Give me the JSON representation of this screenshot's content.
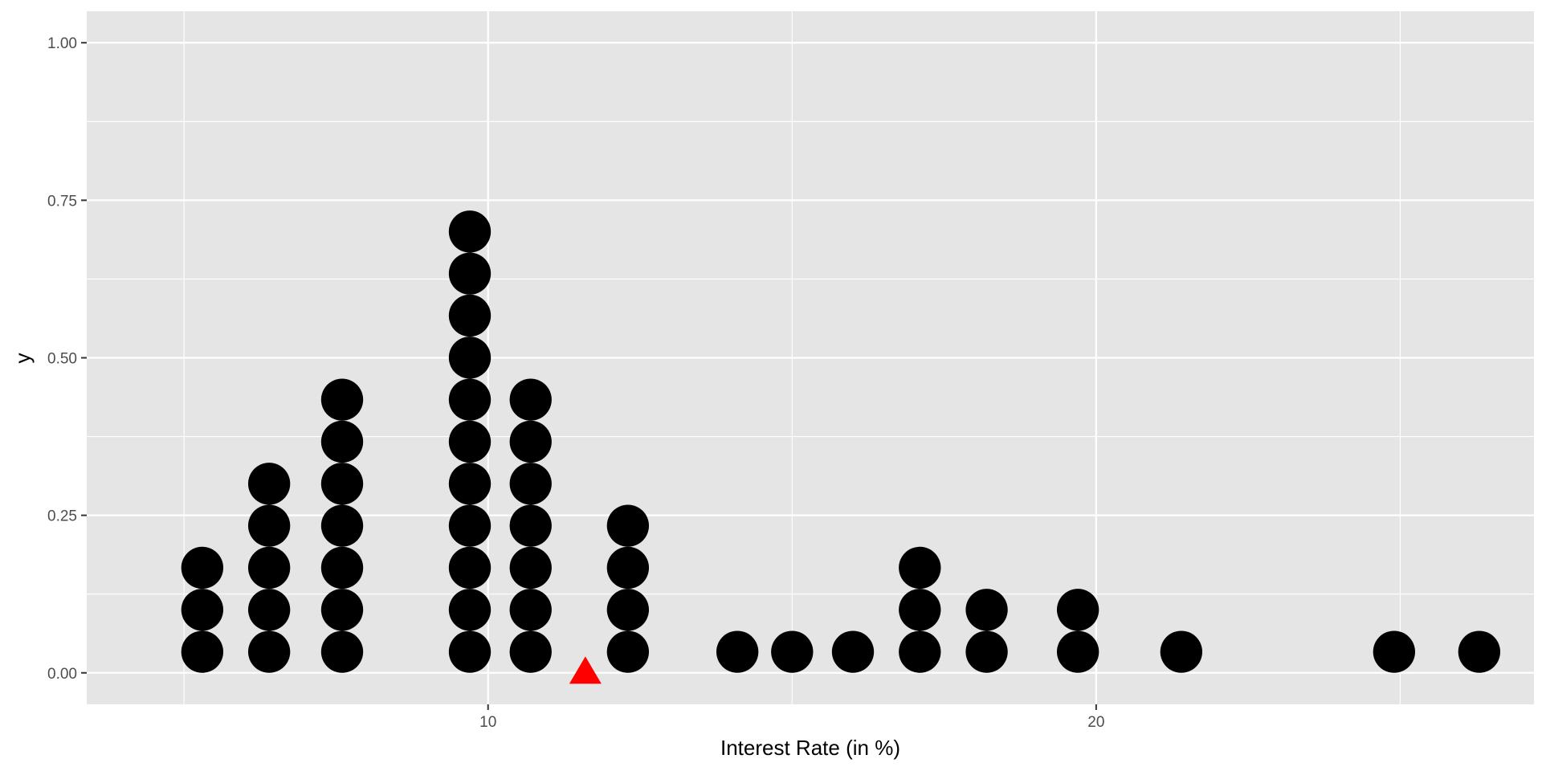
{
  "chart_data": {
    "type": "scatter",
    "subtype": "dotplot",
    "title": "",
    "xlabel": "Interest Rate (in %)",
    "ylabel": "y",
    "xlim": [
      3.4,
      27.2
    ],
    "ylim": [
      -0.05,
      1.05
    ],
    "x_ticks": [
      {
        "value": 10,
        "label": "10"
      },
      {
        "value": 20,
        "label": "20"
      }
    ],
    "x_minor_ticks": [
      5,
      15,
      25
    ],
    "y_ticks": [
      {
        "value": 0,
        "label": "0.00"
      },
      {
        "value": 0.25,
        "label": "0.25"
      },
      {
        "value": 0.5,
        "label": "0.50"
      },
      {
        "value": 0.75,
        "label": "0.75"
      },
      {
        "value": 1,
        "label": "1.00"
      }
    ],
    "y_minor_ticks": [
      0.125,
      0.375,
      0.625,
      0.875
    ],
    "grid": true,
    "legend": "none",
    "dot_step": 0.0667,
    "stacks": [
      {
        "x": 5.3,
        "count": 3
      },
      {
        "x": 6.4,
        "count": 5
      },
      {
        "x": 7.6,
        "count": 7
      },
      {
        "x": 9.7,
        "count": 11
      },
      {
        "x": 10.7,
        "count": 7
      },
      {
        "x": 12.3,
        "count": 4
      },
      {
        "x": 14.1,
        "count": 1
      },
      {
        "x": 15.0,
        "count": 1
      },
      {
        "x": 16.0,
        "count": 1
      },
      {
        "x": 17.1,
        "count": 3
      },
      {
        "x": 18.2,
        "count": 2
      },
      {
        "x": 19.7,
        "count": 2
      },
      {
        "x": 21.4,
        "count": 1
      },
      {
        "x": 24.9,
        "count": 1
      },
      {
        "x": 26.3,
        "count": 1
      }
    ],
    "marker": {
      "x": 11.6,
      "y": 0,
      "shape": "triangle",
      "color": "#ff0000"
    },
    "colors": {
      "panel": "#e5e5e5",
      "grid": "#ffffff",
      "dots": "#000000"
    }
  }
}
